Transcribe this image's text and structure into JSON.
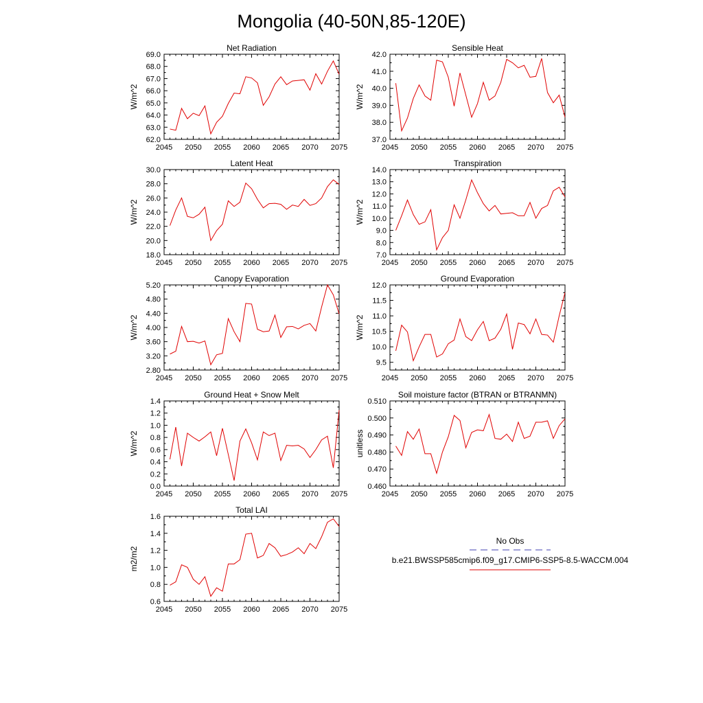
{
  "title": "Mongolia (40-50N,85-120E)",
  "chart_data": [
    {
      "type": "line",
      "title": "Net Radiation",
      "ylabel": "W/m^2",
      "xlim": [
        2045,
        2075
      ],
      "ylim": [
        62.0,
        69.0
      ],
      "xticks": [
        2045,
        2050,
        2055,
        2060,
        2065,
        2070,
        2075
      ],
      "yticks": [
        "62.0",
        "63.0",
        "64.0",
        "65.0",
        "66.0",
        "67.0",
        "68.0",
        "69.0"
      ],
      "x": [
        2046,
        2047,
        2048,
        2049,
        2050,
        2051,
        2052,
        2053,
        2054,
        2055,
        2056,
        2057,
        2058,
        2059,
        2060,
        2061,
        2062,
        2063,
        2064,
        2065,
        2066,
        2067,
        2068,
        2069,
        2070,
        2071,
        2072,
        2073,
        2074,
        2075
      ],
      "values": [
        62.85,
        62.75,
        64.55,
        63.7,
        64.15,
        63.95,
        64.75,
        62.45,
        63.4,
        63.9,
        64.95,
        65.8,
        65.75,
        67.15,
        67.05,
        66.65,
        64.8,
        65.5,
        66.55,
        67.15,
        66.5,
        66.8,
        66.85,
        66.9,
        66.05,
        67.4,
        66.55,
        67.6,
        68.45,
        67.35
      ]
    },
    {
      "type": "line",
      "title": "Sensible Heat",
      "ylabel": "W/m^2",
      "xlim": [
        2045,
        2075
      ],
      "ylim": [
        37.0,
        42.0
      ],
      "xticks": [
        2045,
        2050,
        2055,
        2060,
        2065,
        2070,
        2075
      ],
      "yticks": [
        "37.0",
        "38.0",
        "39.0",
        "40.0",
        "41.0",
        "42.0"
      ],
      "x": [
        2046,
        2047,
        2048,
        2049,
        2050,
        2051,
        2052,
        2053,
        2054,
        2055,
        2056,
        2057,
        2058,
        2059,
        2060,
        2061,
        2062,
        2063,
        2064,
        2065,
        2066,
        2067,
        2068,
        2069,
        2070,
        2071,
        2072,
        2073,
        2074,
        2075
      ],
      "values": [
        40.3,
        37.5,
        38.25,
        39.4,
        40.2,
        39.55,
        39.3,
        41.65,
        41.55,
        40.65,
        38.95,
        40.9,
        39.6,
        38.3,
        39.1,
        40.35,
        39.3,
        39.55,
        40.35,
        41.7,
        41.5,
        41.2,
        41.35,
        40.65,
        40.7,
        41.75,
        39.75,
        39.15,
        39.6,
        38.3
      ]
    },
    {
      "type": "line",
      "title": "Latent Heat",
      "ylabel": "W/m^2",
      "xlim": [
        2045,
        2075
      ],
      "ylim": [
        18.0,
        30.0
      ],
      "xticks": [
        2045,
        2050,
        2055,
        2060,
        2065,
        2070,
        2075
      ],
      "yticks": [
        "18.0",
        "20.0",
        "22.0",
        "24.0",
        "26.0",
        "28.0",
        "30.0"
      ],
      "x": [
        2046,
        2047,
        2048,
        2049,
        2050,
        2051,
        2052,
        2053,
        2054,
        2055,
        2056,
        2057,
        2058,
        2059,
        2060,
        2061,
        2062,
        2063,
        2064,
        2065,
        2066,
        2067,
        2068,
        2069,
        2070,
        2071,
        2072,
        2073,
        2074,
        2075
      ],
      "values": [
        22.1,
        24.3,
        26.0,
        23.4,
        23.2,
        23.7,
        24.7,
        20.0,
        21.4,
        22.3,
        25.6,
        24.8,
        25.4,
        28.1,
        27.3,
        25.8,
        24.6,
        25.2,
        25.25,
        25.1,
        24.4,
        25.0,
        24.8,
        25.8,
        24.95,
        25.2,
        26.0,
        27.6,
        28.55,
        27.9
      ]
    },
    {
      "type": "line",
      "title": "Transpiration",
      "ylabel": "W/m^2",
      "xlim": [
        2045,
        2075
      ],
      "ylim": [
        7.0,
        14.0
      ],
      "xticks": [
        2045,
        2050,
        2055,
        2060,
        2065,
        2070,
        2075
      ],
      "yticks": [
        "7.0",
        "8.0",
        "9.0",
        "10.0",
        "11.0",
        "12.0",
        "13.0",
        "14.0"
      ],
      "x": [
        2046,
        2047,
        2048,
        2049,
        2050,
        2051,
        2052,
        2053,
        2054,
        2055,
        2056,
        2057,
        2058,
        2059,
        2060,
        2061,
        2062,
        2063,
        2064,
        2065,
        2066,
        2067,
        2068,
        2069,
        2070,
        2071,
        2072,
        2073,
        2074,
        2075
      ],
      "values": [
        9.0,
        10.2,
        11.5,
        10.3,
        9.5,
        9.7,
        10.7,
        7.4,
        8.4,
        9.0,
        11.1,
        10.0,
        11.5,
        13.15,
        12.1,
        11.2,
        10.6,
        11.05,
        10.35,
        10.4,
        10.45,
        10.2,
        10.2,
        11.3,
        10.0,
        10.8,
        11.05,
        12.25,
        12.55,
        11.75
      ]
    },
    {
      "type": "line",
      "title": "Canopy Evaporation",
      "ylabel": "W/m^2",
      "xlim": [
        2045,
        2075
      ],
      "ylim": [
        2.8,
        5.2
      ],
      "xticks": [
        2045,
        2050,
        2055,
        2060,
        2065,
        2070,
        2075
      ],
      "yticks": [
        "2.80",
        "3.20",
        "3.60",
        "4.00",
        "4.40",
        "4.80",
        "5.20"
      ],
      "x": [
        2046,
        2047,
        2048,
        2049,
        2050,
        2051,
        2052,
        2053,
        2054,
        2055,
        2056,
        2057,
        2058,
        2059,
        2060,
        2061,
        2062,
        2063,
        2064,
        2065,
        2066,
        2067,
        2068,
        2069,
        2070,
        2071,
        2072,
        2073,
        2074,
        2075
      ],
      "values": [
        3.25,
        3.33,
        4.03,
        3.6,
        3.61,
        3.56,
        3.62,
        2.95,
        3.23,
        3.27,
        4.25,
        3.88,
        3.6,
        4.68,
        4.66,
        3.95,
        3.88,
        3.9,
        4.35,
        3.72,
        4.02,
        4.03,
        3.96,
        4.06,
        4.11,
        3.9,
        4.58,
        5.2,
        4.92,
        4.38
      ]
    },
    {
      "type": "line",
      "title": "Ground Evaporation",
      "ylabel": "W/m^2",
      "xlim": [
        2045,
        2075
      ],
      "ylim": [
        9.25,
        12.0
      ],
      "xticks": [
        2045,
        2050,
        2055,
        2060,
        2065,
        2070,
        2075
      ],
      "yticks": [
        "9.5",
        "10.0",
        "10.5",
        "11.0",
        "11.5",
        "12.0"
      ],
      "x": [
        2046,
        2047,
        2048,
        2049,
        2050,
        2051,
        2052,
        2053,
        2054,
        2055,
        2056,
        2057,
        2058,
        2059,
        2060,
        2061,
        2062,
        2063,
        2064,
        2065,
        2066,
        2067,
        2068,
        2069,
        2070,
        2071,
        2072,
        2073,
        2074,
        2075
      ],
      "values": [
        9.87,
        10.7,
        10.48,
        9.55,
        10.0,
        10.4,
        10.4,
        9.67,
        9.77,
        10.1,
        10.22,
        10.9,
        10.33,
        10.2,
        10.55,
        10.82,
        10.2,
        10.28,
        10.57,
        11.06,
        9.92,
        10.77,
        10.72,
        10.42,
        10.9,
        10.4,
        10.38,
        10.15,
        11.0,
        11.75
      ]
    },
    {
      "type": "line",
      "title": "Ground Heat + Snow Melt",
      "ylabel": "W/m^2",
      "xlim": [
        2045,
        2075
      ],
      "ylim": [
        0.0,
        1.4
      ],
      "xticks": [
        2045,
        2050,
        2055,
        2060,
        2065,
        2070,
        2075
      ],
      "yticks": [
        "0.0",
        "0.2",
        "0.4",
        "0.6",
        "0.8",
        "1.0",
        "1.2",
        "1.4"
      ],
      "x": [
        2046,
        2047,
        2048,
        2049,
        2050,
        2051,
        2052,
        2053,
        2054,
        2055,
        2056,
        2057,
        2058,
        2059,
        2060,
        2061,
        2062,
        2063,
        2064,
        2065,
        2066,
        2067,
        2068,
        2069,
        2070,
        2071,
        2072,
        2073,
        2074,
        2075
      ],
      "values": [
        0.44,
        0.97,
        0.33,
        0.87,
        0.8,
        0.74,
        0.81,
        0.89,
        0.5,
        0.95,
        0.52,
        0.09,
        0.74,
        0.94,
        0.71,
        0.43,
        0.89,
        0.83,
        0.87,
        0.42,
        0.67,
        0.66,
        0.67,
        0.61,
        0.47,
        0.6,
        0.76,
        0.82,
        0.3,
        1.25
      ]
    },
    {
      "type": "line",
      "title": "Soil moisture factor (BTRAN or BTRANMN)",
      "ylabel": "unitless",
      "xlim": [
        2045,
        2075
      ],
      "ylim": [
        0.46,
        0.51
      ],
      "xticks": [
        2045,
        2050,
        2055,
        2060,
        2065,
        2070,
        2075
      ],
      "yticks": [
        "0.460",
        "0.470",
        "0.480",
        "0.490",
        "0.500",
        "0.510"
      ],
      "x": [
        2046,
        2047,
        2048,
        2049,
        2050,
        2051,
        2052,
        2053,
        2054,
        2055,
        2056,
        2057,
        2058,
        2059,
        2060,
        2061,
        2062,
        2063,
        2064,
        2065,
        2066,
        2067,
        2068,
        2069,
        2070,
        2071,
        2072,
        2073,
        2074,
        2075
      ],
      "values": [
        0.4835,
        0.478,
        0.492,
        0.4875,
        0.4935,
        0.479,
        0.479,
        0.4675,
        0.48,
        0.489,
        0.5015,
        0.4985,
        0.4825,
        0.4915,
        0.493,
        0.4925,
        0.502,
        0.488,
        0.4875,
        0.4905,
        0.4862,
        0.4975,
        0.488,
        0.4893,
        0.4975,
        0.4975,
        0.4983,
        0.488,
        0.4955,
        0.4995
      ]
    },
    {
      "type": "line",
      "title": "Total LAI",
      "ylabel": "m2/m2",
      "xlim": [
        2045,
        2075
      ],
      "ylim": [
        0.6,
        1.6
      ],
      "xticks": [
        2045,
        2050,
        2055,
        2060,
        2065,
        2070,
        2075
      ],
      "yticks": [
        "0.6",
        "0.8",
        "1.0",
        "1.2",
        "1.4",
        "1.6"
      ],
      "x": [
        2046,
        2047,
        2048,
        2049,
        2050,
        2051,
        2052,
        2053,
        2054,
        2055,
        2056,
        2057,
        2058,
        2059,
        2060,
        2061,
        2062,
        2063,
        2064,
        2065,
        2066,
        2067,
        2068,
        2069,
        2070,
        2071,
        2072,
        2073,
        2074,
        2075
      ],
      "values": [
        0.79,
        0.83,
        1.03,
        1.0,
        0.86,
        0.8,
        0.89,
        0.66,
        0.76,
        0.72,
        1.04,
        1.04,
        1.09,
        1.39,
        1.4,
        1.11,
        1.14,
        1.28,
        1.23,
        1.13,
        1.15,
        1.18,
        1.23,
        1.16,
        1.28,
        1.22,
        1.36,
        1.53,
        1.57,
        1.48
      ]
    }
  ],
  "legend": {
    "items": [
      {
        "label": "No Obs",
        "color": "#4040b0",
        "style": "dashed"
      },
      {
        "label": "b.e21.BWSSP585cmip6.f09_g17.CMIP6-SSP5-8.5-WACCM.004",
        "color": "#e00000",
        "style": "solid"
      }
    ]
  },
  "colors": {
    "series": "#e00000"
  }
}
